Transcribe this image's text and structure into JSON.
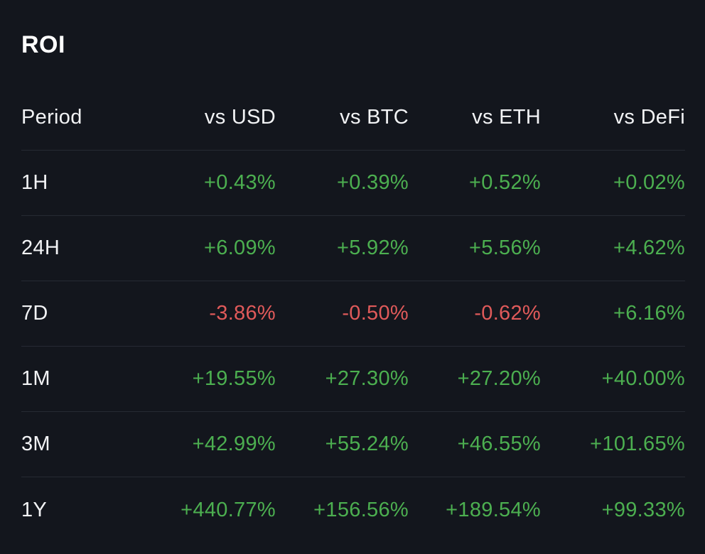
{
  "title": "ROI",
  "colors": {
    "background": "#13161d",
    "positive": "#4caf50",
    "negative": "#e05a5a",
    "divider": "#262a33",
    "text": "#f2f3f5"
  },
  "table": {
    "headers": [
      "Period",
      "vs USD",
      "vs BTC",
      "vs ETH",
      "vs DeFi"
    ],
    "rows": [
      {
        "period": "1H",
        "values": [
          "+0.43%",
          "+0.39%",
          "+0.52%",
          "+0.02%"
        ]
      },
      {
        "period": "24H",
        "values": [
          "+6.09%",
          "+5.92%",
          "+5.56%",
          "+4.62%"
        ]
      },
      {
        "period": "7D",
        "values": [
          "-3.86%",
          "-0.50%",
          "-0.62%",
          "+6.16%"
        ]
      },
      {
        "period": "1M",
        "values": [
          "+19.55%",
          "+27.30%",
          "+27.20%",
          "+40.00%"
        ]
      },
      {
        "period": "3M",
        "values": [
          "+42.99%",
          "+55.24%",
          "+46.55%",
          "+101.65%"
        ]
      },
      {
        "period": "1Y",
        "values": [
          "+440.77%",
          "+156.56%",
          "+189.54%",
          "+99.33%"
        ]
      }
    ]
  }
}
